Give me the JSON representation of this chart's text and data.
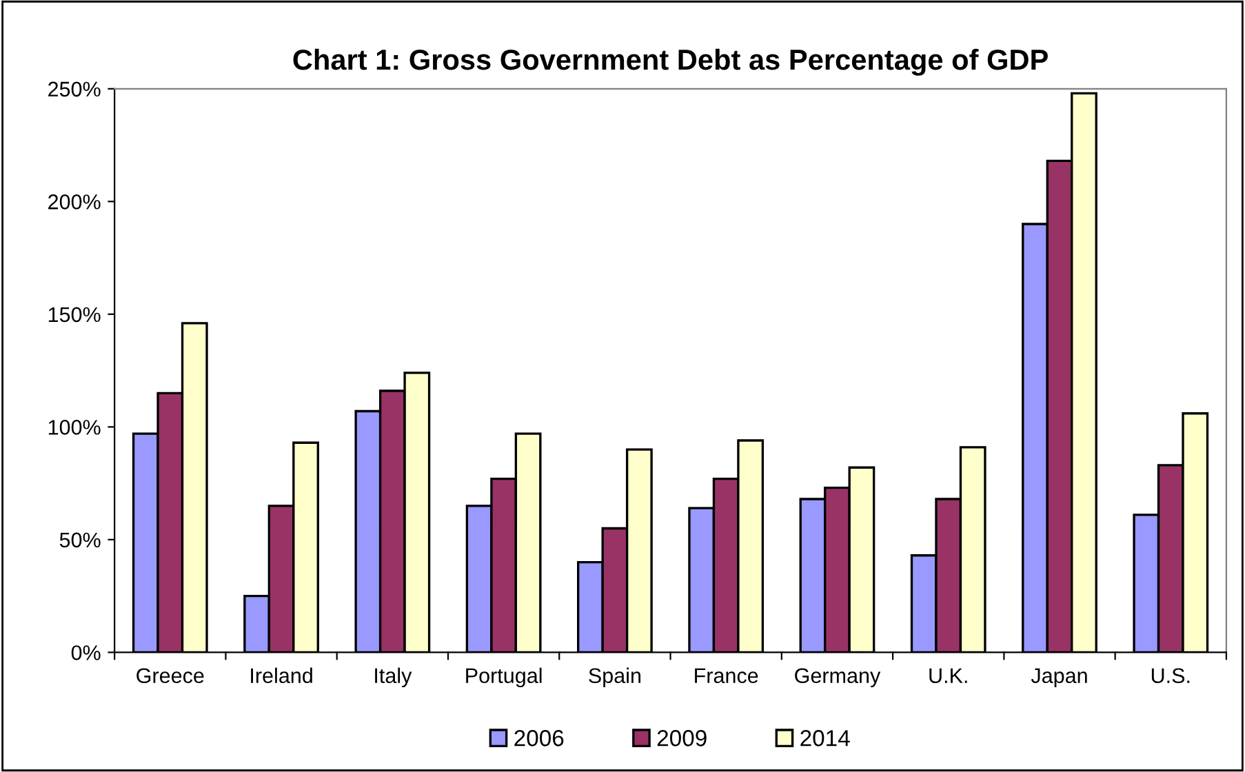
{
  "chart_data": {
    "type": "bar",
    "title": "Chart 1: Gross Government Debt as Percentage of GDP",
    "categories": [
      "Greece",
      "Ireland",
      "Italy",
      "Portugal",
      "Spain",
      "France",
      "Germany",
      "U.K.",
      "Japan",
      "U.S."
    ],
    "series": [
      {
        "name": "2006",
        "color": "#9999ff",
        "values": [
          97,
          25,
          107,
          65,
          40,
          64,
          68,
          43,
          190,
          61
        ]
      },
      {
        "name": "2009",
        "color": "#993366",
        "values": [
          115,
          65,
          116,
          77,
          55,
          77,
          73,
          68,
          218,
          83
        ]
      },
      {
        "name": "2014",
        "color": "#ffffcc",
        "values": [
          146,
          93,
          124,
          97,
          90,
          94,
          82,
          91,
          248,
          106
        ]
      }
    ],
    "ylim": [
      0,
      250
    ],
    "yticks": [
      {
        "value": 0,
        "label": "0%"
      },
      {
        "value": 50,
        "label": "50%"
      },
      {
        "value": 100,
        "label": "100%"
      },
      {
        "value": 150,
        "label": "150%"
      },
      {
        "value": 200,
        "label": "200%"
      },
      {
        "value": 250,
        "label": "250%"
      }
    ],
    "grid": false,
    "legend": "bottom"
  }
}
